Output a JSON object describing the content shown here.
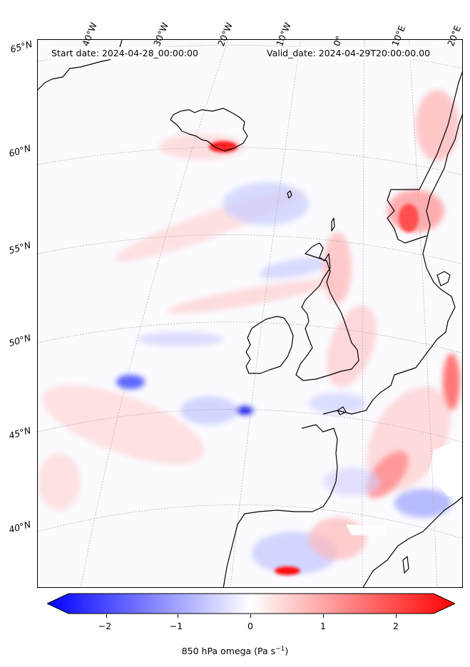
{
  "header": {
    "start_date": "Start date: 2024-04-28_00:00:00",
    "valid_date": "Valid_date: 2024-04-29T20:00:00.00"
  },
  "longitude_labels": [
    "40°W",
    "30°W",
    "20°W",
    "10°W",
    "0°",
    "10°E",
    "20°E"
  ],
  "latitude_labels": [
    "65°N",
    "60°N",
    "55°N",
    "50°N",
    "45°N",
    "40°N"
  ],
  "colorbar": {
    "ticks": [
      "−2",
      "−1",
      "0",
      "1",
      "2"
    ],
    "label": "850 hPa omega (Pa s",
    "label_sup": "−1",
    "label_end": ")",
    "range": [
      -2.6,
      2.6
    ],
    "colors": {
      "negative": "#0000ff",
      "zero": "#ffffff",
      "positive": "#ff0000"
    }
  }
}
